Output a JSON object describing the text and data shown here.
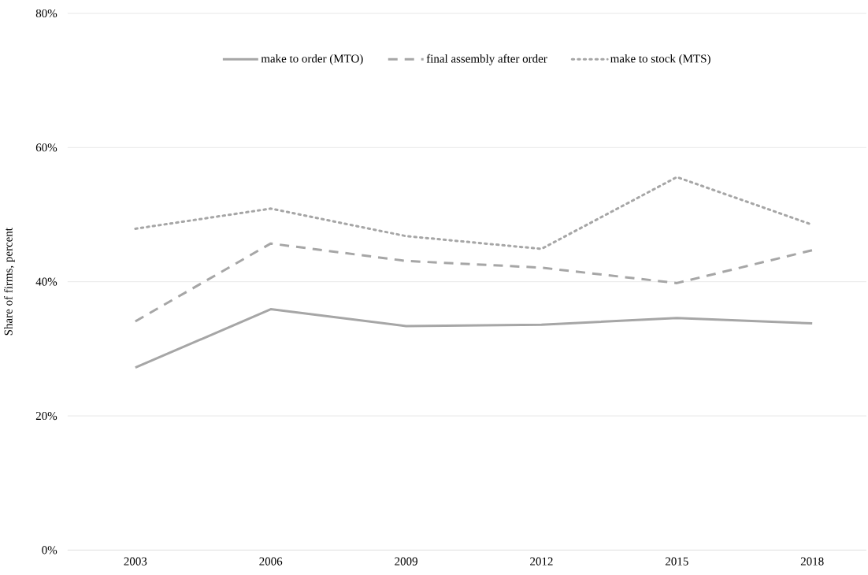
{
  "chart_data": {
    "type": "line",
    "ylabel": "Share of firms, percent",
    "categories": [
      "2003",
      "2006",
      "2009",
      "2012",
      "2015",
      "2018"
    ],
    "ylim": [
      0,
      80
    ],
    "yticks": [
      {
        "value": 0,
        "label": "0%"
      },
      {
        "value": 20,
        "label": "20%"
      },
      {
        "value": 40,
        "label": "40%"
      },
      {
        "value": 60,
        "label": "60%"
      },
      {
        "value": 80,
        "label": "80%"
      }
    ],
    "grid": "y",
    "legend": "top",
    "marker": "none",
    "series": [
      {
        "name": "make to order (MTO)",
        "color": "#a6a6a6",
        "line_style": "solid",
        "values": [
          27.2,
          35.9,
          33.4,
          33.6,
          34.6,
          33.8
        ]
      },
      {
        "name": "final assembly after order",
        "color": "#a6a6a6",
        "line_style": "dashed",
        "values": [
          34.1,
          45.7,
          43.1,
          42.1,
          39.8,
          44.7
        ]
      },
      {
        "name": "make to stock (MTS)",
        "color": "#a6a6a6",
        "line_style": "dotted",
        "values": [
          47.9,
          50.9,
          46.8,
          44.9,
          55.6,
          48.5
        ]
      }
    ]
  }
}
